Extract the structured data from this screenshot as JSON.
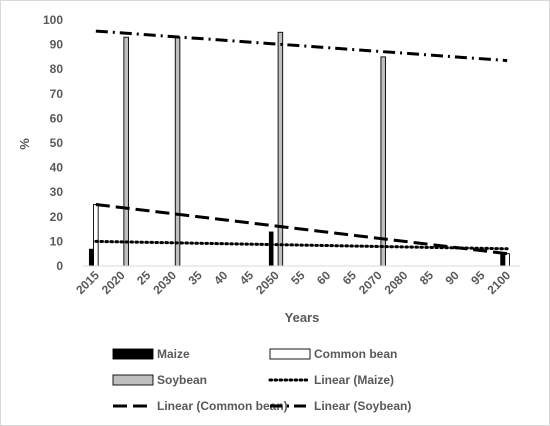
{
  "chart_data": {
    "type": "bar",
    "title": "",
    "xlabel": "Years",
    "ylabel": "%",
    "ylim": [
      0,
      100
    ],
    "yticks": [
      "0",
      "10",
      "20",
      "30",
      "40",
      "50",
      "60",
      "70",
      "80",
      "90",
      "100"
    ],
    "categories": [
      "2015",
      "2020",
      "25",
      "2030",
      "35",
      "40",
      "45",
      "2050",
      "55",
      "60",
      "65",
      "2070",
      "2080",
      "85",
      "90",
      "95",
      "2100"
    ],
    "series": [
      {
        "name": "Maize",
        "color": "#000000",
        "values": [
          7,
          0,
          0,
          0,
          0,
          0,
          0,
          14,
          0,
          0,
          0,
          0,
          0,
          0,
          0,
          0,
          5
        ]
      },
      {
        "name": "Common bean",
        "color": "#ffffff",
        "values": [
          25,
          0,
          0,
          0,
          0,
          0,
          0,
          0,
          0,
          0,
          0,
          0,
          0,
          0,
          0,
          0,
          5
        ]
      },
      {
        "name": "Soybean",
        "color": "#bfbfbf",
        "values": [
          0,
          93,
          0,
          93,
          0,
          0,
          0,
          95,
          0,
          0,
          0,
          85,
          0,
          0,
          0,
          0,
          0
        ]
      }
    ],
    "trendlines": [
      {
        "name": "Linear (Maize)",
        "style": "dotted",
        "start": 10,
        "end": 7
      },
      {
        "name": "Linear (Common bean)",
        "style": "dashed",
        "start": 25,
        "end": 5
      },
      {
        "name": "Linear (Soybean)",
        "style": "dash-dot",
        "start": 95.5,
        "end": 83.5
      }
    ],
    "grid": false,
    "legend_position": "bottom"
  }
}
